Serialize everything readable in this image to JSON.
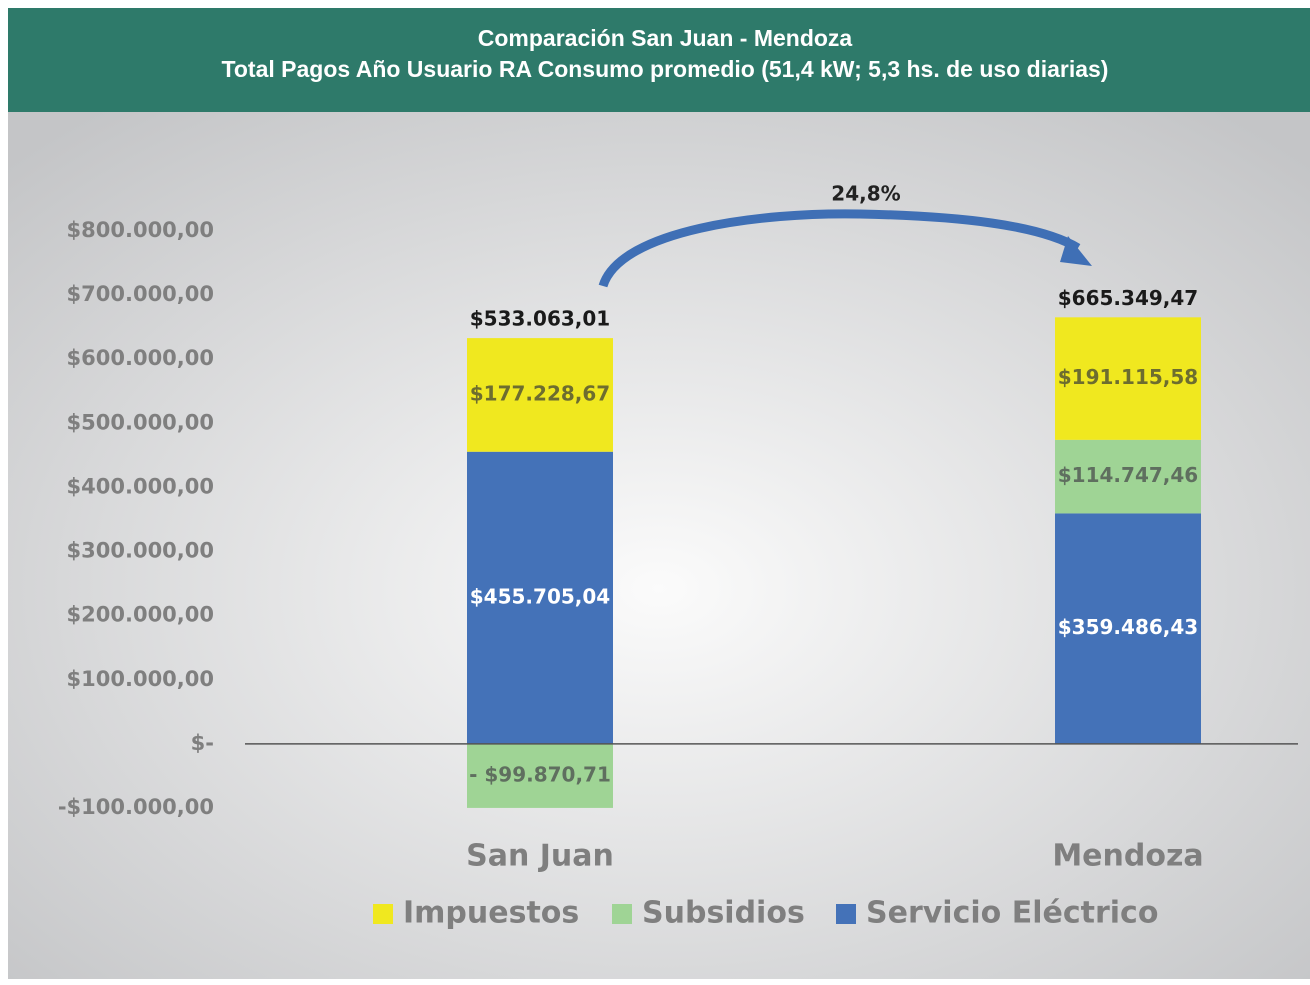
{
  "chart_data": {
    "type": "stacked_bar",
    "title": "Comparación San Juan - Mendoza",
    "subtitle": "Total Pagos Año Usuario RA Consumo promedio (51,4 kW; 5,3 hs. de uso diarias)",
    "categories": [
      "San Juan",
      "Mendoza"
    ],
    "series": [
      {
        "name": "Servicio Eléctrico",
        "color": "#4472b8",
        "values": [
          455705.04,
          359486.43
        ],
        "value_labels": [
          "$455.705,04",
          "$359.486,43"
        ]
      },
      {
        "name": "Subsidios",
        "color": "#9fd495",
        "values": [
          -99870.71,
          114747.46
        ],
        "value_labels": [
          "- $99.870,71",
          "$114.747,46"
        ]
      },
      {
        "name": "Impuestos",
        "color": "#f0e81f",
        "values": [
          177228.67,
          191115.58
        ],
        "value_labels": [
          "$177.228,67",
          "$191.115,58"
        ]
      }
    ],
    "totals": {
      "values": [
        533063.01,
        665349.47
      ],
      "value_labels": [
        "$533.063,01",
        "$665.349,47"
      ]
    },
    "annotation": "24,8%",
    "ylim": [
      -100000,
      800000
    ],
    "yticks": [
      {
        "value": -100000,
        "label": "-$100.000,00"
      },
      {
        "value": 0,
        "label": "$-"
      },
      {
        "value": 100000,
        "label": "$100.000,00"
      },
      {
        "value": 200000,
        "label": "$200.000,00"
      },
      {
        "value": 300000,
        "label": "$300.000,00"
      },
      {
        "value": 400000,
        "label": "$400.000,00"
      },
      {
        "value": 500000,
        "label": "$500.000,00"
      },
      {
        "value": 600000,
        "label": "$600.000,00"
      },
      {
        "value": 700000,
        "label": "$700.000,00"
      },
      {
        "value": 800000,
        "label": "$800.000,00"
      }
    ],
    "grid": false,
    "legend": "bottom"
  }
}
